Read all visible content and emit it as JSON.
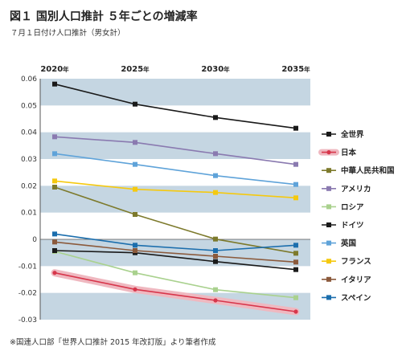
{
  "title": "図１ 国別人口推計 ５年ごとの増減率",
  "subtitle": "７月１日付け人口推計（男女計）",
  "source": "※国連人口部「世界人口推計 2015 年改訂版」より筆者作成",
  "chart_data": {
    "type": "line",
    "x": [
      "2020年",
      "2025年",
      "2030年",
      "2035年"
    ],
    "ylim": [
      -0.03,
      0.06
    ],
    "yticks": [
      "0.06",
      "0.05",
      "0.04",
      "0.03",
      "0.02",
      "0.01",
      "0",
      "-0.01",
      "-0.02",
      "-0.03"
    ],
    "grid_bands": true,
    "legend_position": "right",
    "series": [
      {
        "name": "全世界",
        "color": "#1a1a1a",
        "values": [
          0.058,
          0.0505,
          0.0455,
          0.0415
        ]
      },
      {
        "name": "日本",
        "color": "#d7364b",
        "highlight": true,
        "values": [
          -0.0125,
          -0.0187,
          -0.0228,
          -0.027
        ]
      },
      {
        "name": "中華人民共和国",
        "color": "#7d7a2c",
        "values": [
          0.0195,
          0.0093,
          0.0001,
          -0.0052
        ]
      },
      {
        "name": "アメリカ",
        "color": "#8a7ab0",
        "values": [
          0.0383,
          0.0362,
          0.032,
          0.028
        ]
      },
      {
        "name": "ロシア",
        "color": "#a9d18e",
        "values": [
          -0.0045,
          -0.0125,
          -0.0188,
          -0.0218
        ]
      },
      {
        "name": "ドイツ",
        "color": "#1a1a1a",
        "values": [
          -0.0042,
          -0.005,
          -0.0083,
          -0.0113
        ]
      },
      {
        "name": "英国",
        "color": "#5fa3d9",
        "values": [
          0.032,
          0.028,
          0.0238,
          0.0205
        ]
      },
      {
        "name": "フランス",
        "color": "#f5c90f",
        "values": [
          0.0218,
          0.0187,
          0.0175,
          0.0155
        ]
      },
      {
        "name": "イタリア",
        "color": "#8b5a3c",
        "values": [
          -0.001,
          -0.0042,
          -0.0063,
          -0.0085
        ]
      },
      {
        "name": "スペイン",
        "color": "#1b6ead",
        "values": [
          0.002,
          -0.0022,
          -0.0042,
          -0.0022
        ]
      }
    ]
  }
}
